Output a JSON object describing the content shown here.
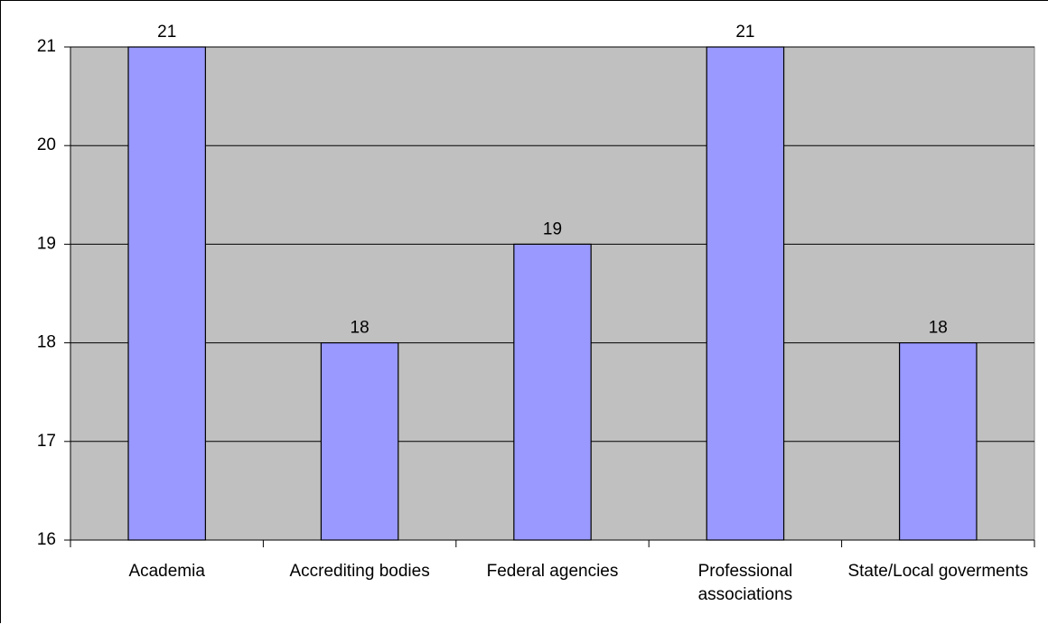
{
  "chart_data": {
    "type": "bar",
    "categories": [
      "Academia",
      "Accrediting bodies",
      "Federal agencies",
      "Professional associations",
      "State/Local goverments"
    ],
    "values": [
      21,
      18,
      19,
      21,
      18
    ],
    "color": "#9999ff",
    "ylim": [
      16,
      21
    ],
    "yticks": [
      16,
      17,
      18,
      19,
      20,
      21
    ],
    "grid": true
  }
}
